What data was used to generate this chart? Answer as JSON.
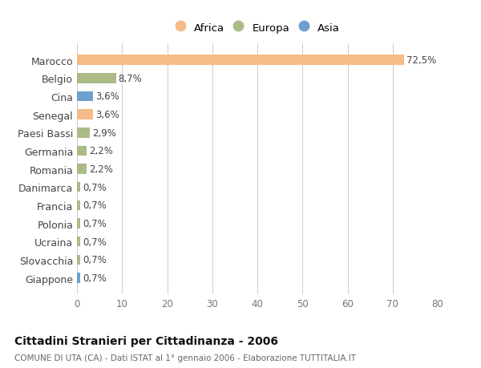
{
  "categories": [
    "Giappone",
    "Slovacchia",
    "Ucraina",
    "Polonia",
    "Francia",
    "Danimarca",
    "Romania",
    "Germania",
    "Paesi Bassi",
    "Senegal",
    "Cina",
    "Belgio",
    "Marocco"
  ],
  "values": [
    0.7,
    0.7,
    0.7,
    0.7,
    0.7,
    0.7,
    2.2,
    2.2,
    2.9,
    3.6,
    3.6,
    8.7,
    72.5
  ],
  "labels": [
    "0,7%",
    "0,7%",
    "0,7%",
    "0,7%",
    "0,7%",
    "0,7%",
    "2,2%",
    "2,2%",
    "2,9%",
    "3,6%",
    "3,6%",
    "8,7%",
    "72,5%"
  ],
  "colors": [
    "#6f9fcf",
    "#aabb88",
    "#aabb88",
    "#aabb88",
    "#aabb88",
    "#aabb88",
    "#aabb88",
    "#aabb88",
    "#aabb88",
    "#f5bb88",
    "#6f9fcf",
    "#aabb88",
    "#f5bb88"
  ],
  "legend_labels": [
    "Africa",
    "Europa",
    "Asia"
  ],
  "legend_colors": [
    "#f5bb88",
    "#aabb88",
    "#6f9fcf"
  ],
  "title": "Cittadini Stranieri per Cittadinanza - 2006",
  "subtitle": "COMUNE DI UTA (CA) - Dati ISTAT al 1° gennaio 2006 - Elaborazione TUTTITALIA.IT",
  "xlim": [
    0,
    80
  ],
  "xticks": [
    0,
    10,
    20,
    30,
    40,
    50,
    60,
    70,
    80
  ],
  "background_color": "#ffffff",
  "bar_height": 0.55,
  "label_fontsize": 8.5,
  "ytick_fontsize": 9,
  "xtick_fontsize": 8.5
}
